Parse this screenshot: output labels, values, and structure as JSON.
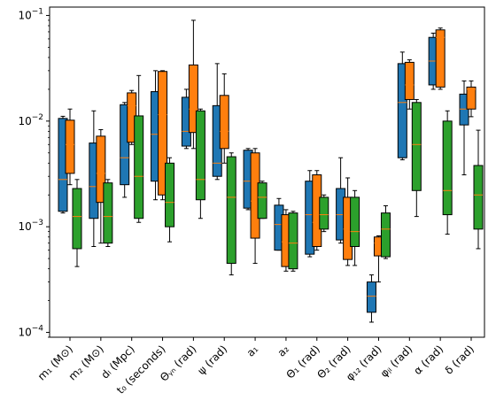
{
  "chart_data": {
    "type": "box",
    "yscale": "log",
    "ylim": [
      9e-05,
      0.12
    ],
    "y_ticks": [
      {
        "value": 0.0001,
        "base": "10",
        "exp": "−4"
      },
      {
        "value": 0.001,
        "base": "10",
        "exp": "−3"
      },
      {
        "value": 0.01,
        "base": "10",
        "exp": "−2"
      },
      {
        "value": 0.1,
        "base": "10",
        "exp": "−1"
      }
    ],
    "categories": [
      {
        "label": "m₁ (M⊙)"
      },
      {
        "label": "m₂ (M⊙)"
      },
      {
        "label": "dₗ (Mpc)"
      },
      {
        "label": "t₀ (seconds)"
      },
      {
        "label": "Θᵧₙ (rad)"
      },
      {
        "label": "ψ (rad)"
      },
      {
        "label": "a₁"
      },
      {
        "label": "a₂"
      },
      {
        "label": "Θ₁ (rad)"
      },
      {
        "label": "Θ₂ (rad)"
      },
      {
        "label": "φ₁₂ (rad)"
      },
      {
        "label": "φⱼₗ (rad)"
      },
      {
        "label": "α (rad)"
      },
      {
        "label": "δ (rad)"
      }
    ],
    "series": [
      {
        "color": "#1f77b4",
        "boxes": [
          {
            "whislo": 0.00135,
            "q1": 0.0014,
            "med": 0.0028,
            "q3": 0.0106,
            "whishi": 0.0111
          },
          {
            "whislo": 0.00065,
            "q1": 0.0012,
            "med": 0.0024,
            "q3": 0.0062,
            "whishi": 0.0125
          },
          {
            "whislo": 0.0019,
            "q1": 0.0025,
            "med": 0.0045,
            "q3": 0.0143,
            "whishi": 0.015
          },
          {
            "whislo": 0.0018,
            "q1": 0.0027,
            "med": 0.0075,
            "q3": 0.019,
            "whishi": 0.03
          },
          {
            "whislo": 0.0055,
            "q1": 0.0058,
            "med": 0.008,
            "q3": 0.0168,
            "whishi": 0.02
          },
          {
            "whislo": 0.0028,
            "q1": 0.003,
            "med": 0.004,
            "q3": 0.014,
            "whishi": 0.035
          },
          {
            "whislo": 0.00145,
            "q1": 0.0015,
            "med": 0.0027,
            "q3": 0.0053,
            "whishi": 0.0055
          },
          {
            "whislo": 0.0006,
            "q1": 0.0006,
            "med": 0.00105,
            "q3": 0.0016,
            "whishi": 0.00185
          },
          {
            "whislo": 0.00052,
            "q1": 0.00055,
            "med": 0.0013,
            "q3": 0.0027,
            "whishi": 0.0034
          },
          {
            "whislo": 0.0007,
            "q1": 0.00075,
            "med": 0.0013,
            "q3": 0.0023,
            "whishi": 0.0045
          },
          {
            "whislo": 0.000125,
            "q1": 0.000155,
            "med": 0.00022,
            "q3": 0.0003,
            "whishi": 0.00035
          },
          {
            "whislo": 0.0043,
            "q1": 0.0045,
            "med": 0.015,
            "q3": 0.035,
            "whishi": 0.045
          },
          {
            "whislo": 0.02,
            "q1": 0.022,
            "med": 0.037,
            "q3": 0.062,
            "whishi": 0.068
          },
          {
            "whislo": 0.0031,
            "q1": 0.0092,
            "med": 0.013,
            "q3": 0.018,
            "whishi": 0.024
          }
        ]
      },
      {
        "color": "#ff7f0e",
        "boxes": [
          {
            "whislo": 0.0025,
            "q1": 0.0032,
            "med": 0.006,
            "q3": 0.0102,
            "whishi": 0.013
          },
          {
            "whislo": 0.0007,
            "q1": 0.0017,
            "med": 0.0032,
            "q3": 0.0072,
            "whishi": 0.0083
          },
          {
            "whislo": 0.006,
            "q1": 0.0063,
            "med": 0.014,
            "q3": 0.0185,
            "whishi": 0.0195
          },
          {
            "whislo": 0.0018,
            "q1": 0.002,
            "med": 0.0115,
            "q3": 0.0295,
            "whishi": 0.03
          },
          {
            "whislo": 0.0055,
            "q1": 0.0078,
            "med": 0.013,
            "q3": 0.034,
            "whishi": 0.09
          },
          {
            "whislo": 0.004,
            "q1": 0.0055,
            "med": 0.008,
            "q3": 0.0175,
            "whishi": 0.028
          },
          {
            "whislo": 0.00045,
            "q1": 0.00078,
            "med": 0.00175,
            "q3": 0.005,
            "whishi": 0.0055
          },
          {
            "whislo": 0.00038,
            "q1": 0.00042,
            "med": 0.00072,
            "q3": 0.0013,
            "whishi": 0.00145
          },
          {
            "whislo": 0.0006,
            "q1": 0.00065,
            "med": 0.0011,
            "q3": 0.0031,
            "whishi": 0.0034
          },
          {
            "whislo": 0.00043,
            "q1": 0.00049,
            "med": 0.00095,
            "q3": 0.0019,
            "whishi": 0.0029
          },
          {
            "whislo": 0.0003,
            "q1": 0.00053,
            "med": 0.0007,
            "q3": 0.0008,
            "whishi": 0.00082
          },
          {
            "whislo": 0.013,
            "q1": 0.016,
            "med": 0.022,
            "q3": 0.036,
            "whishi": 0.038
          },
          {
            "whislo": 0.02,
            "q1": 0.021,
            "med": 0.062,
            "q3": 0.073,
            "whishi": 0.076
          },
          {
            "whislo": 0.011,
            "q1": 0.013,
            "med": 0.02,
            "q3": 0.021,
            "whishi": 0.024
          }
        ]
      },
      {
        "color": "#2ca02c",
        "boxes": [
          {
            "whislo": 0.00042,
            "q1": 0.00062,
            "med": 0.00125,
            "q3": 0.0023,
            "whishi": 0.0028
          },
          {
            "whislo": 0.00065,
            "q1": 0.0007,
            "med": 0.00125,
            "q3": 0.0026,
            "whishi": 0.0028
          },
          {
            "whislo": 0.0011,
            "q1": 0.0012,
            "med": 0.003,
            "q3": 0.0112,
            "whishi": 0.027
          },
          {
            "whislo": 0.00072,
            "q1": 0.001,
            "med": 0.0017,
            "q3": 0.004,
            "whishi": 0.0045
          },
          {
            "whislo": 0.0012,
            "q1": 0.0018,
            "med": 0.0028,
            "q3": 0.0125,
            "whishi": 0.013
          },
          {
            "whislo": 0.00035,
            "q1": 0.00045,
            "med": 0.0019,
            "q3": 0.0046,
            "whishi": 0.005
          },
          {
            "whislo": 0.0012,
            "q1": 0.0012,
            "med": 0.0019,
            "q3": 0.0026,
            "whishi": 0.0027
          },
          {
            "whislo": 0.00038,
            "q1": 0.0004,
            "med": 0.0007,
            "q3": 0.00135,
            "whishi": 0.0014
          },
          {
            "whislo": 0.0009,
            "q1": 0.00095,
            "med": 0.0013,
            "q3": 0.0019,
            "whishi": 0.002
          },
          {
            "whislo": 0.00043,
            "q1": 0.00065,
            "med": 0.0009,
            "q3": 0.0019,
            "whishi": 0.0022
          },
          {
            "whislo": 0.0005,
            "q1": 0.00052,
            "med": 0.00095,
            "q3": 0.00135,
            "whishi": 0.00158
          },
          {
            "whislo": 0.00125,
            "q1": 0.0022,
            "med": 0.006,
            "q3": 0.015,
            "whishi": 0.016
          },
          {
            "whislo": 0.00085,
            "q1": 0.0013,
            "med": 0.0022,
            "q3": 0.01,
            "whishi": 0.0125
          },
          {
            "whislo": 0.00062,
            "q1": 0.00095,
            "med": 0.002,
            "q3": 0.0038,
            "whishi": 0.0082
          }
        ]
      }
    ],
    "median_color": "#ff7f0e",
    "grid": false,
    "legend": "none"
  }
}
